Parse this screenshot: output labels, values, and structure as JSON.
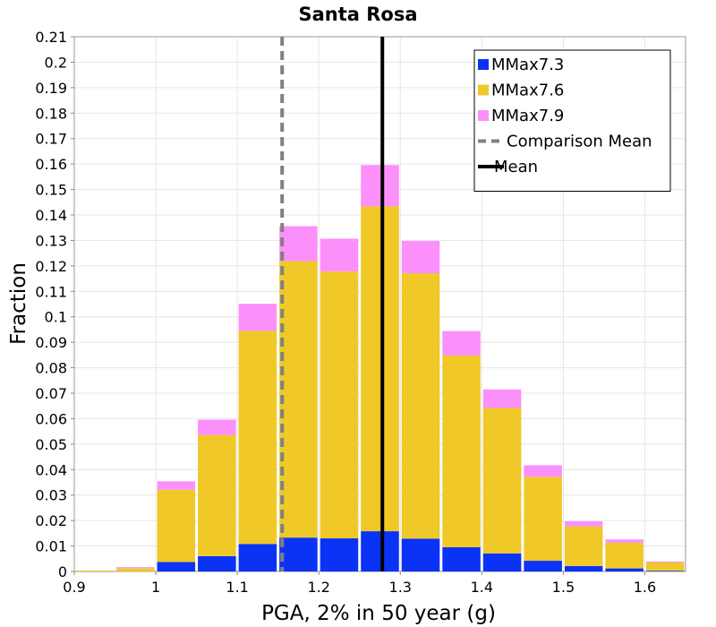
{
  "chart_data": {
    "type": "bar",
    "stacked": true,
    "title": "Santa Rosa",
    "xlabel": "PGA, 2% in 50 year (g)",
    "ylabel": "Fraction",
    "xlim": [
      0.9,
      1.65
    ],
    "ylim": [
      0,
      0.21
    ],
    "xticks": [
      "0.9",
      "1",
      "1.1",
      "1.2",
      "1.3",
      "1.4",
      "1.5",
      "1.6"
    ],
    "yticks": [
      "0",
      "0.01",
      "0.02",
      "0.03",
      "0.04",
      "0.05",
      "0.06",
      "0.07",
      "0.08",
      "0.09",
      "0.1",
      "0.11",
      "0.12",
      "0.13",
      "0.14",
      "0.15",
      "0.16",
      "0.17",
      "0.18",
      "0.19",
      "0.2",
      "0.21"
    ],
    "grid": true,
    "legend_position": "top-right",
    "bin_width": 0.05,
    "bin_centers": [
      0.925,
      0.975,
      1.025,
      1.075,
      1.125,
      1.175,
      1.225,
      1.275,
      1.325,
      1.375,
      1.425,
      1.475,
      1.525,
      1.575,
      1.625
    ],
    "series": [
      {
        "name": "MMax7.3",
        "color": "#0a33f5",
        "values": [
          0.0,
          0.0,
          0.0037,
          0.006,
          0.0108,
          0.0133,
          0.013,
          0.0158,
          0.0129,
          0.0095,
          0.0071,
          0.0042,
          0.0021,
          0.0012,
          0.0003
        ]
      },
      {
        "name": "MMax7.6",
        "color": "#f0c828",
        "values": [
          0.0004,
          0.0013,
          0.0284,
          0.0476,
          0.0837,
          0.1086,
          0.1048,
          0.1276,
          0.1042,
          0.0753,
          0.0571,
          0.033,
          0.0156,
          0.0101,
          0.0032
        ]
      },
      {
        "name": "MMax7.9",
        "color": "#fb90fb",
        "values": [
          0.0,
          0.0004,
          0.0033,
          0.006,
          0.0106,
          0.0137,
          0.0129,
          0.0162,
          0.0127,
          0.0096,
          0.0073,
          0.0045,
          0.002,
          0.0013,
          0.0004
        ]
      }
    ],
    "lines": [
      {
        "name": "Comparison Mean",
        "x": 1.155,
        "style": "dashed",
        "color": "#808080"
      },
      {
        "name": "Mean",
        "x": 1.278,
        "style": "solid",
        "color": "#000000"
      }
    ]
  }
}
